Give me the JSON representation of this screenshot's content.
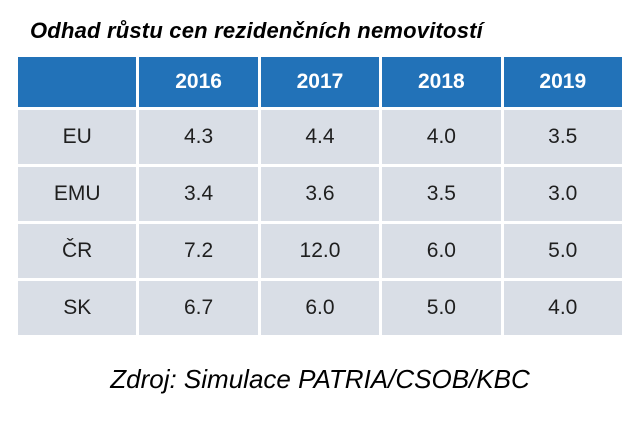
{
  "colors": {
    "header_bg": "#2272b8",
    "cell_bg": "#d9dee6",
    "header_text": "#ffffff",
    "cell_text": "#1f1f1f"
  },
  "chart_data": {
    "type": "table",
    "title": "Odhad růstu cen rezidenčních nemovitostí",
    "columns": [
      "",
      "2016",
      "2017",
      "2018",
      "2019"
    ],
    "rows": [
      {
        "label": "EU",
        "values": [
          "4.3",
          "4.4",
          "4.0",
          "3.5"
        ]
      },
      {
        "label": "EMU",
        "values": [
          "3.4",
          "3.6",
          "3.5",
          "3.0"
        ]
      },
      {
        "label": "ČR",
        "values": [
          "7.2",
          "12.0",
          "6.0",
          "5.0"
        ]
      },
      {
        "label": "SK",
        "values": [
          "6.7",
          "6.0",
          "5.0",
          "4.0"
        ]
      }
    ],
    "source": "Zdroj: Simulace PATRIA/CSOB/KBC"
  }
}
